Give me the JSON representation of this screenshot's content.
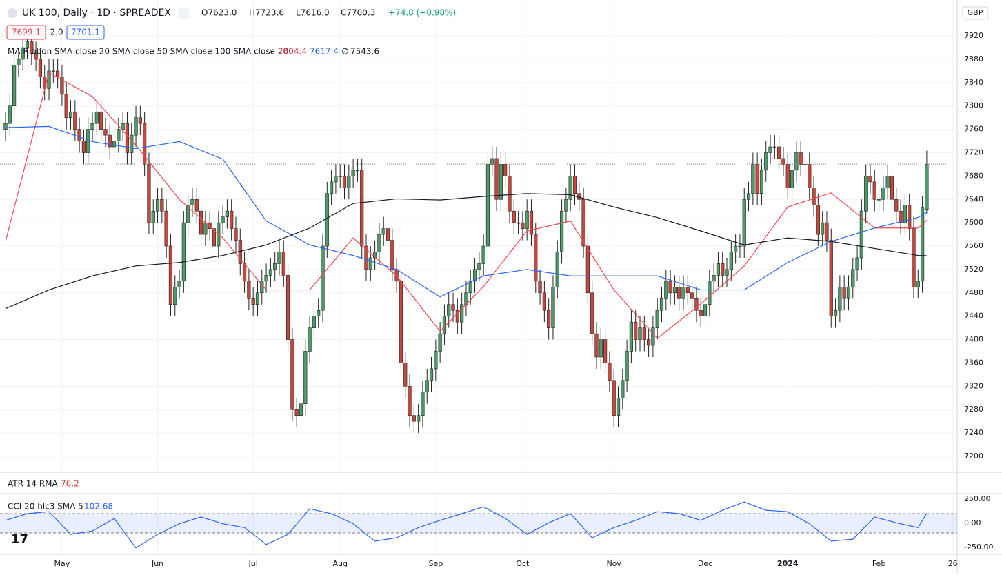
{
  "header": {
    "symbol": "UK 100, Daily · 1D · SPREADEX",
    "open": "O7623.0",
    "high": "H7723.6",
    "low": "L7616.0",
    "close": "C7700.3",
    "change": "+74.8 (+0.98%)",
    "bid": "7699.1",
    "spread": "2.0",
    "ask": "7701.1",
    "currency": "GBP"
  },
  "chart_data": [
    {
      "type": "candlestick",
      "title": "MA Ribbon SMA close 20 SMA close 50 SMA close 100 SMA close 200",
      "up_color": "#4f9a6a",
      "down_color": "#c8473c",
      "open": [
        7760,
        7770,
        7800,
        7870,
        7880,
        7900,
        7910,
        7890,
        7880,
        7850,
        7830,
        7860,
        7860,
        7850,
        7820,
        7780,
        7790,
        7760,
        7740,
        7720,
        7760,
        7770,
        7790,
        7760,
        7750,
        7730,
        7740,
        7760,
        7770,
        7720,
        7750,
        7780,
        7770,
        7700,
        7600,
        7620,
        7640,
        7620,
        7560,
        7460,
        7490,
        7500,
        7600,
        7630,
        7640,
        7620,
        7580,
        7600,
        7590,
        7560,
        7600,
        7610,
        7620,
        7590,
        7570,
        7530,
        7500,
        7470,
        7460,
        7480,
        7500,
        7510,
        7520,
        7530,
        7550,
        7510,
        7400,
        7280,
        7270,
        7290,
        7380,
        7420,
        7440,
        7450,
        7560,
        7650,
        7670,
        7680,
        7680,
        7660,
        7680,
        7690,
        7690,
        7560,
        7520,
        7540,
        7550,
        7580,
        7590,
        7570,
        7520,
        7500,
        7360,
        7320,
        7270,
        7260,
        7270,
        7310,
        7330,
        7350,
        7380,
        7410,
        7440,
        7460,
        7450,
        7430,
        7460,
        7480,
        7500,
        7520,
        7530,
        7560,
        7700,
        7710,
        7640,
        7700,
        7680,
        7620,
        7600,
        7600,
        7590,
        7620,
        7580,
        7500,
        7480,
        7450,
        7420,
        7490,
        7550,
        7620,
        7640,
        7680,
        7650,
        7640,
        7560,
        7480,
        7410,
        7370,
        7400,
        7360,
        7330,
        7270,
        7300,
        7330,
        7380,
        7430,
        7400,
        7420,
        7400,
        7390,
        7420,
        7450,
        7470,
        7500,
        7480,
        7490,
        7470,
        7490,
        7480,
        7470,
        7450,
        7440,
        7460,
        7500,
        7510,
        7530,
        7510,
        7520,
        7550,
        7560,
        7560,
        7640,
        7650,
        7700,
        7650,
        7690,
        7720,
        7730,
        7730,
        7710,
        7700,
        7660,
        7690,
        7720,
        7700,
        7700,
        7660,
        7630,
        7580,
        7600,
        7570,
        7440,
        7450,
        7490,
        7470,
        7490,
        7520,
        7540,
        7620,
        7680,
        7670,
        7640,
        7640,
        7660,
        7680,
        7640,
        7620,
        7600,
        7630,
        7590,
        7490,
        7500,
        7623
      ],
      "high": [
        7790,
        7820,
        7890,
        7900,
        7920,
        7930,
        7930,
        7910,
        7900,
        7870,
        7880,
        7880,
        7880,
        7870,
        7840,
        7810,
        7810,
        7780,
        7760,
        7780,
        7790,
        7810,
        7810,
        7780,
        7770,
        7760,
        7780,
        7790,
        7790,
        7770,
        7800,
        7800,
        7790,
        7720,
        7640,
        7660,
        7660,
        7640,
        7580,
        7510,
        7520,
        7620,
        7650,
        7660,
        7660,
        7640,
        7620,
        7620,
        7610,
        7620,
        7630,
        7640,
        7640,
        7610,
        7590,
        7550,
        7520,
        7490,
        7500,
        7520,
        7530,
        7540,
        7550,
        7570,
        7570,
        7530,
        7420,
        7300,
        7310,
        7400,
        7440,
        7460,
        7470,
        7580,
        7670,
        7690,
        7700,
        7700,
        7700,
        7700,
        7710,
        7710,
        7710,
        7580,
        7560,
        7570,
        7600,
        7610,
        7610,
        7590,
        7540,
        7520,
        7380,
        7340,
        7290,
        7290,
        7330,
        7350,
        7370,
        7400,
        7430,
        7460,
        7480,
        7480,
        7470,
        7480,
        7500,
        7520,
        7540,
        7550,
        7580,
        7720,
        7730,
        7730,
        7720,
        7720,
        7700,
        7640,
        7620,
        7620,
        7640,
        7640,
        7600,
        7520,
        7500,
        7470,
        7510,
        7570,
        7640,
        7660,
        7700,
        7700,
        7670,
        7660,
        7580,
        7500,
        7430,
        7420,
        7420,
        7380,
        7350,
        7320,
        7350,
        7400,
        7450,
        7450,
        7440,
        7440,
        7420,
        7440,
        7470,
        7490,
        7520,
        7520,
        7510,
        7510,
        7510,
        7510,
        7500,
        7490,
        7470,
        7480,
        7520,
        7530,
        7550,
        7550,
        7540,
        7570,
        7580,
        7580,
        7660,
        7670,
        7720,
        7720,
        7710,
        7740,
        7750,
        7750,
        7750,
        7730,
        7720,
        7710,
        7740,
        7740,
        7720,
        7720,
        7680,
        7650,
        7620,
        7620,
        7590,
        7470,
        7510,
        7510,
        7510,
        7540,
        7560,
        7640,
        7700,
        7700,
        7690,
        7660,
        7680,
        7700,
        7700,
        7660,
        7640,
        7650,
        7650,
        7610,
        7520,
        7645.5,
        7723.6
      ],
      "low": [
        7740,
        7750,
        7780,
        7850,
        7860,
        7880,
        7870,
        7860,
        7830,
        7810,
        7810,
        7840,
        7830,
        7800,
        7760,
        7760,
        7740,
        7720,
        7700,
        7700,
        7740,
        7750,
        7740,
        7730,
        7710,
        7710,
        7720,
        7740,
        7700,
        7700,
        7730,
        7750,
        7680,
        7580,
        7580,
        7600,
        7600,
        7540,
        7440,
        7440,
        7470,
        7480,
        7580,
        7610,
        7600,
        7560,
        7560,
        7570,
        7540,
        7540,
        7580,
        7590,
        7570,
        7550,
        7510,
        7480,
        7450,
        7440,
        7440,
        7460,
        7480,
        7490,
        7500,
        7510,
        7490,
        7380,
        7260,
        7250,
        7250,
        7270,
        7360,
        7400,
        7420,
        7430,
        7540,
        7630,
        7650,
        7660,
        7640,
        7640,
        7660,
        7670,
        7540,
        7500,
        7500,
        7520,
        7530,
        7560,
        7550,
        7500,
        7480,
        7340,
        7300,
        7250,
        7240,
        7240,
        7250,
        7290,
        7310,
        7330,
        7360,
        7390,
        7420,
        7430,
        7410,
        7410,
        7440,
        7460,
        7480,
        7500,
        7510,
        7540,
        7680,
        7620,
        7620,
        7660,
        7600,
        7580,
        7580,
        7570,
        7570,
        7560,
        7480,
        7460,
        7430,
        7400,
        7400,
        7470,
        7530,
        7600,
        7620,
        7630,
        7620,
        7540,
        7460,
        7390,
        7350,
        7350,
        7340,
        7310,
        7250,
        7250,
        7280,
        7310,
        7360,
        7380,
        7380,
        7380,
        7370,
        7370,
        7400,
        7430,
        7450,
        7460,
        7460,
        7450,
        7450,
        7460,
        7450,
        7430,
        7420,
        7420,
        7440,
        7480,
        7490,
        7490,
        7490,
        7500,
        7530,
        7540,
        7540,
        7620,
        7630,
        7630,
        7630,
        7670,
        7700,
        7710,
        7690,
        7680,
        7640,
        7640,
        7670,
        7680,
        7680,
        7640,
        7610,
        7560,
        7560,
        7550,
        7420,
        7420,
        7430,
        7450,
        7450,
        7470,
        7500,
        7520,
        7600,
        7650,
        7620,
        7620,
        7620,
        7640,
        7620,
        7600,
        7580,
        7580,
        7570,
        7470,
        7470,
        7480,
        7616
      ],
      "close": [
        7770,
        7800,
        7870,
        7880,
        7900,
        7910,
        7890,
        7880,
        7850,
        7830,
        7860,
        7860,
        7850,
        7820,
        7780,
        7790,
        7760,
        7740,
        7720,
        7760,
        7770,
        7790,
        7760,
        7750,
        7730,
        7740,
        7760,
        7770,
        7720,
        7750,
        7780,
        7770,
        7700,
        7600,
        7620,
        7640,
        7620,
        7560,
        7460,
        7490,
        7500,
        7600,
        7630,
        7640,
        7620,
        7580,
        7600,
        7590,
        7560,
        7600,
        7610,
        7620,
        7590,
        7570,
        7530,
        7500,
        7470,
        7460,
        7480,
        7500,
        7510,
        7520,
        7530,
        7550,
        7510,
        7400,
        7280,
        7270,
        7290,
        7380,
        7420,
        7440,
        7450,
        7560,
        7650,
        7670,
        7680,
        7680,
        7660,
        7680,
        7690,
        7690,
        7560,
        7520,
        7540,
        7550,
        7580,
        7590,
        7570,
        7520,
        7500,
        7360,
        7320,
        7270,
        7260,
        7270,
        7310,
        7330,
        7350,
        7380,
        7410,
        7440,
        7460,
        7450,
        7430,
        7460,
        7480,
        7500,
        7520,
        7530,
        7560,
        7700,
        7710,
        7640,
        7700,
        7680,
        7620,
        7600,
        7600,
        7590,
        7620,
        7580,
        7500,
        7480,
        7450,
        7420,
        7490,
        7550,
        7620,
        7640,
        7680,
        7650,
        7640,
        7560,
        7480,
        7410,
        7370,
        7400,
        7360,
        7330,
        7270,
        7300,
        7330,
        7380,
        7430,
        7400,
        7420,
        7400,
        7390,
        7420,
        7450,
        7470,
        7500,
        7480,
        7490,
        7470,
        7490,
        7480,
        7470,
        7450,
        7440,
        7460,
        7500,
        7510,
        7530,
        7510,
        7520,
        7550,
        7560,
        7560,
        7640,
        7650,
        7700,
        7650,
        7690,
        7720,
        7730,
        7730,
        7710,
        7700,
        7660,
        7690,
        7720,
        7700,
        7700,
        7660,
        7630,
        7580,
        7600,
        7570,
        7440,
        7450,
        7490,
        7470,
        7490,
        7520,
        7540,
        7620,
        7680,
        7670,
        7640,
        7640,
        7660,
        7680,
        7640,
        7620,
        7600,
        7630,
        7590,
        7490,
        7500,
        7625.5,
        7700.3
      ],
      "series": [
        {
          "color": "#f0474f",
          "x": [
            0,
            10,
            20,
            30,
            40,
            50,
            60,
            70,
            80,
            90,
            100,
            110,
            120,
            130,
            140,
            150,
            160,
            170,
            180,
            190,
            200,
            210,
            212
          ],
          "values": [
            7568,
            7857,
            7816,
            7733,
            7640,
            7574,
            7485,
            7485,
            7574,
            7509,
            7414,
            7491,
            7586,
            7603,
            7485,
            7402,
            7461,
            7526,
            7627,
            7651,
            7591,
            7591,
            7604.4
          ]
        },
        {
          "color": "#2962ff",
          "x": [
            0,
            10,
            20,
            30,
            40,
            50,
            60,
            70,
            80,
            90,
            100,
            110,
            120,
            130,
            140,
            150,
            160,
            170,
            180,
            190,
            200,
            210,
            212
          ],
          "values": [
            7763,
            7765,
            7739,
            7727,
            7739,
            7709,
            7603,
            7562,
            7544,
            7520,
            7473,
            7509,
            7520,
            7509,
            7509,
            7509,
            7485,
            7485,
            7532,
            7568,
            7591,
            7609,
            7617.4
          ]
        },
        {
          "color": "#131722",
          "x": [
            0,
            10,
            20,
            30,
            40,
            50,
            60,
            70,
            80,
            90,
            100,
            110,
            120,
            130,
            140,
            150,
            160,
            170,
            180,
            190,
            200,
            210,
            212
          ],
          "values": [
            7453,
            7485,
            7509,
            7526,
            7532,
            7544,
            7562,
            7591,
            7633,
            7641,
            7639,
            7645,
            7650,
            7648,
            7627,
            7609,
            7586,
            7562,
            7574,
            7568,
            7556,
            7544,
            7543.6
          ]
        }
      ],
      "xlim": [
        -1.27,
        219
      ],
      "xticks": [
        {
          "value": 13,
          "label": "May"
        },
        {
          "value": 35,
          "label": "Jun"
        },
        {
          "value": 57,
          "label": "Jul"
        },
        {
          "value": 77,
          "label": "Aug"
        },
        {
          "value": 99,
          "label": "Sep"
        },
        {
          "value": 119,
          "label": "Oct"
        },
        {
          "value": 140,
          "label": "Nov"
        },
        {
          "value": 161,
          "label": "Dec"
        },
        {
          "value": 180,
          "label": "2024"
        },
        {
          "value": 201,
          "label": "Feb"
        },
        {
          "value": 218,
          "label": "26"
        }
      ],
      "ylim": [
        7172.8,
        7981.5
      ],
      "yticks": [
        7200,
        7240,
        7280,
        7320,
        7360,
        7400,
        7440,
        7480,
        7520,
        7560,
        7600,
        7640,
        7680,
        7720,
        7760,
        7800,
        7840,
        7880,
        7920
      ],
      "grid": true,
      "atr": {
        "label": "ATR 14 RMA",
        "value": 76.2
      }
    },
    {
      "type": "line",
      "title": "CCI 20 hlc3 SMA 5",
      "color": "#2962ff",
      "x": [
        0,
        5,
        10,
        15,
        20,
        25,
        30,
        35,
        40,
        45,
        50,
        55,
        60,
        65,
        70,
        75,
        80,
        85,
        90,
        95,
        100,
        105,
        110,
        115,
        120,
        125,
        130,
        135,
        140,
        145,
        150,
        155,
        160,
        165,
        170,
        175,
        180,
        185,
        190,
        195,
        200,
        205,
        210,
        212
      ],
      "values": [
        30,
        100,
        120,
        -115,
        -80,
        50,
        -255,
        -115,
        -5,
        65,
        -5,
        -45,
        -220,
        -115,
        150,
        100,
        -5,
        -185,
        -150,
        -45,
        30,
        100,
        170,
        50,
        -115,
        5,
        100,
        -150,
        -45,
        30,
        120,
        100,
        30,
        135,
        220,
        135,
        120,
        -5,
        -185,
        -165,
        65,
        5,
        -45,
        102.68
      ],
      "band": [
        -100,
        100
      ],
      "ylim": [
        -314,
        507
      ],
      "yticks": [
        {
          "value": 250,
          "label": "250.00"
        },
        {
          "value": 0,
          "label": "0.00"
        },
        {
          "value": -250,
          "label": "-250.00"
        }
      ]
    }
  ]
}
